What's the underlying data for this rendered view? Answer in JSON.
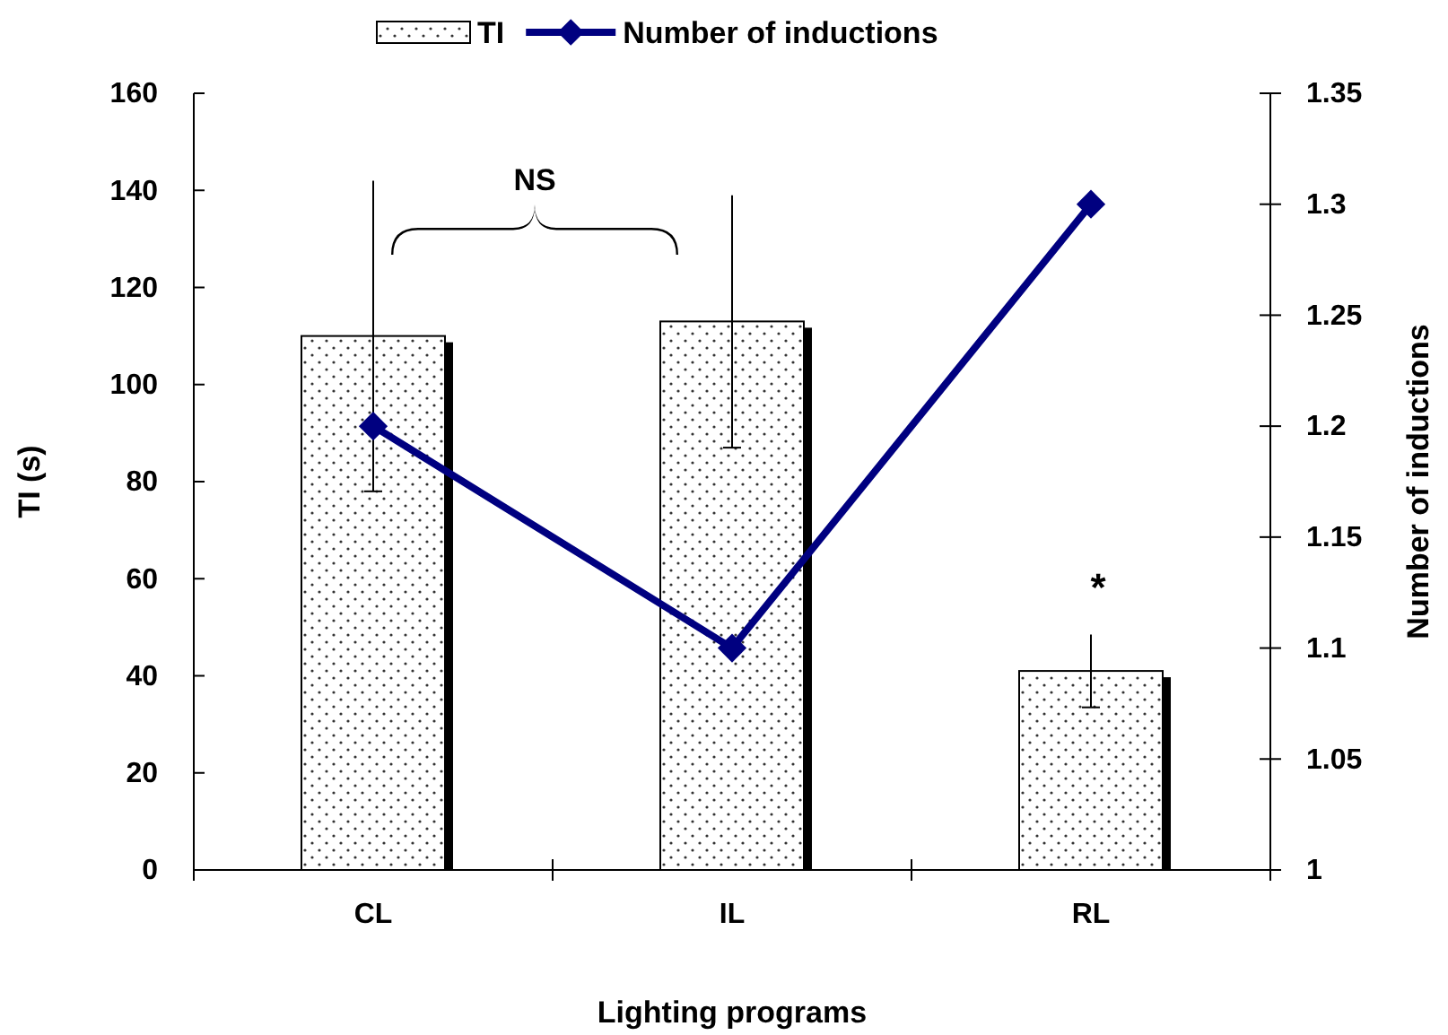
{
  "chart_data": {
    "type": "bar",
    "categories": [
      "CL",
      "IL",
      "RL"
    ],
    "series": [
      {
        "name": "TI",
        "color": "#ffffff",
        "values": [
          110,
          113,
          41
        ],
        "errors": [
          32,
          26,
          7.5
        ]
      },
      {
        "name": "Number of inductions",
        "type": "line",
        "axis": "y2",
        "color": "#000080",
        "values": [
          1.2,
          1.1,
          1.3
        ]
      }
    ],
    "xlabel": "Lighting programs",
    "ylabel": "TI (s)",
    "y2label": "Number of inductions",
    "ylim": [
      0,
      160
    ],
    "yticks": [
      0,
      20,
      40,
      60,
      80,
      100,
      120,
      140,
      160
    ],
    "y2lim": [
      1,
      1.35
    ],
    "y2ticks": [
      1,
      1.05,
      1.1,
      1.15,
      1.2,
      1.25,
      1.3,
      1.35
    ],
    "annotations": [
      "NS",
      "*"
    ],
    "legend": "top",
    "marker": "diamond",
    "line_style": "solid",
    "grid": false
  }
}
